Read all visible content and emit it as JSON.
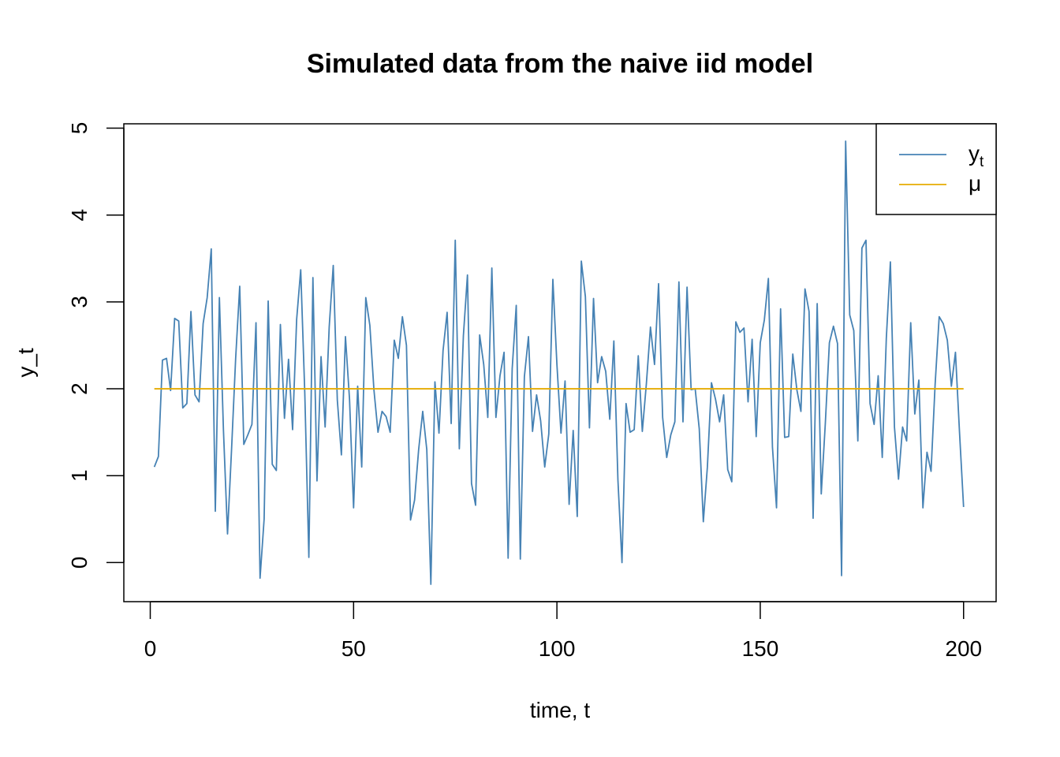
{
  "chart_data": {
    "type": "line",
    "title": "Simulated data from the naive iid model",
    "xlabel": "time, t",
    "ylabel": "y_t",
    "xlim": [
      -6.5,
      208
    ],
    "ylim": [
      -0.45,
      5.05
    ],
    "xticks": [
      0,
      50,
      100,
      150,
      200
    ],
    "yticks": [
      0,
      1,
      2,
      3,
      4,
      5
    ],
    "legend_position": "top-right",
    "grid": false,
    "series": [
      {
        "name": "y",
        "name_subscript": "t",
        "color": "#4682B4",
        "x_start": 1,
        "x_step": 1,
        "values": [
          1.1,
          1.22,
          2.33,
          2.35,
          1.98,
          2.81,
          2.78,
          1.78,
          1.83,
          2.89,
          1.93,
          1.85,
          2.75,
          3.05,
          3.61,
          0.59,
          3.05,
          1.52,
          0.33,
          1.31,
          2.35,
          3.18,
          1.36,
          1.47,
          1.59,
          2.76,
          -0.18,
          0.5,
          3.01,
          1.13,
          1.06,
          2.74,
          1.66,
          2.34,
          1.53,
          2.8,
          3.37,
          1.95,
          0.06,
          3.28,
          0.94,
          2.37,
          1.56,
          2.71,
          3.42,
          1.87,
          1.24,
          2.6,
          1.88,
          0.63,
          2.03,
          1.1,
          3.05,
          2.73,
          1.99,
          1.5,
          1.74,
          1.68,
          1.5,
          2.56,
          2.35,
          2.83,
          2.5,
          0.49,
          0.72,
          1.3,
          1.74,
          1.3,
          -0.25,
          2.08,
          1.49,
          2.44,
          2.88,
          1.6,
          3.71,
          1.31,
          2.61,
          3.31,
          0.91,
          0.66,
          2.62,
          2.28,
          1.67,
          3.39,
          1.67,
          2.15,
          2.42,
          0.05,
          2.23,
          2.96,
          0.04,
          2.14,
          2.6,
          1.51,
          1.93,
          1.63,
          1.1,
          1.48,
          3.26,
          2.28,
          1.49,
          2.09,
          0.67,
          1.52,
          0.53,
          3.47,
          3.06,
          1.55,
          3.04,
          2.07,
          2.37,
          2.2,
          1.65,
          2.55,
          0.95,
          0.0,
          1.83,
          1.5,
          1.53,
          2.38,
          1.51,
          2.06,
          2.71,
          2.28,
          3.21,
          1.67,
          1.21,
          1.47,
          1.62,
          3.23,
          1.62,
          3.17,
          1.99,
          2.0,
          1.54,
          0.47,
          1.1,
          2.07,
          1.88,
          1.62,
          1.93,
          1.07,
          0.93,
          2.77,
          2.65,
          2.7,
          1.85,
          2.57,
          1.45,
          2.53,
          2.79,
          3.27,
          1.33,
          0.63,
          2.92,
          1.44,
          1.45,
          2.4,
          1.99,
          1.74,
          3.15,
          2.89,
          0.51,
          2.98,
          0.79,
          1.6,
          2.53,
          2.72,
          2.52,
          -0.15,
          4.85,
          2.85,
          2.67,
          1.4,
          3.62,
          3.71,
          1.83,
          1.59,
          2.15,
          1.21,
          2.58,
          3.46,
          1.56,
          0.96,
          1.56,
          1.4,
          2.76,
          1.71,
          2.1,
          0.63,
          1.27,
          1.05,
          2.05,
          2.83,
          2.75,
          2.56,
          2.03,
          2.42,
          1.5,
          0.64
        ]
      },
      {
        "name": "μ",
        "color": "#E6AB02",
        "x": [
          1,
          200
        ],
        "values": [
          2,
          2
        ]
      }
    ]
  }
}
